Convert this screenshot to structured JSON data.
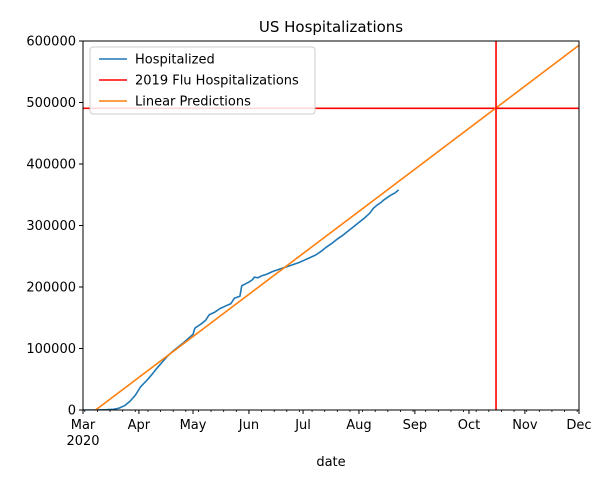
{
  "chart_data": {
    "type": "line",
    "title": "US Hospitalizations",
    "xlabel": "date",
    "ylabel": "",
    "x_axis": {
      "type": "date",
      "range": [
        "2020-03-01",
        "2020-12-01"
      ],
      "ticks": [
        {
          "date": "2020-03-01",
          "label": "Mar",
          "sublabel": "2020"
        },
        {
          "date": "2020-04-01",
          "label": "Apr"
        },
        {
          "date": "2020-05-01",
          "label": "May"
        },
        {
          "date": "2020-06-01",
          "label": "Jun"
        },
        {
          "date": "2020-07-01",
          "label": "Jul"
        },
        {
          "date": "2020-08-01",
          "label": "Aug"
        },
        {
          "date": "2020-09-01",
          "label": "Sep"
        },
        {
          "date": "2020-10-01",
          "label": "Oct"
        },
        {
          "date": "2020-11-01",
          "label": "Nov"
        },
        {
          "date": "2020-12-01",
          "label": "Dec"
        }
      ]
    },
    "y_axis": {
      "range": [
        0,
        600000
      ],
      "ticks": [
        {
          "value": 0,
          "label": "0"
        },
        {
          "value": 100000,
          "label": "100000"
        },
        {
          "value": 200000,
          "label": "200000"
        },
        {
          "value": 300000,
          "label": "300000"
        },
        {
          "value": 400000,
          "label": "400000"
        },
        {
          "value": 500000,
          "label": "500000"
        },
        {
          "value": 600000,
          "label": "600000"
        }
      ]
    },
    "grid": false,
    "legend": {
      "placement": "upper-left",
      "entries": [
        "Hospitalized",
        "2019 Flu Hospitalizations",
        "Linear Predictions"
      ]
    },
    "series": [
      {
        "name": "Hospitalized",
        "color": "#1f77b4",
        "points": [
          [
            "2020-03-01",
            0
          ],
          [
            "2020-03-06",
            0
          ],
          [
            "2020-03-10",
            150
          ],
          [
            "2020-03-14",
            500
          ],
          [
            "2020-03-18",
            1200
          ],
          [
            "2020-03-21",
            3000
          ],
          [
            "2020-03-24",
            7000
          ],
          [
            "2020-03-27",
            14000
          ],
          [
            "2020-03-30",
            24000
          ],
          [
            "2020-04-02",
            38000
          ],
          [
            "2020-04-05",
            47000
          ],
          [
            "2020-04-08",
            57000
          ],
          [
            "2020-04-11",
            68000
          ],
          [
            "2020-04-14",
            78000
          ],
          [
            "2020-04-17",
            88000
          ],
          [
            "2020-04-20",
            96000
          ],
          [
            "2020-04-23",
            103000
          ],
          [
            "2020-04-26",
            110000
          ],
          [
            "2020-04-29",
            118000
          ],
          [
            "2020-05-01",
            123000
          ],
          [
            "2020-05-02",
            133000
          ],
          [
            "2020-05-04",
            137000
          ],
          [
            "2020-05-06",
            141000
          ],
          [
            "2020-05-08",
            146000
          ],
          [
            "2020-05-10",
            155000
          ],
          [
            "2020-05-13",
            159000
          ],
          [
            "2020-05-16",
            165000
          ],
          [
            "2020-05-19",
            169000
          ],
          [
            "2020-05-22",
            173000
          ],
          [
            "2020-05-24",
            182000
          ],
          [
            "2020-05-27",
            185000
          ],
          [
            "2020-05-28",
            202000
          ],
          [
            "2020-05-30",
            205000
          ],
          [
            "2020-06-01",
            208000
          ],
          [
            "2020-06-03",
            212000
          ],
          [
            "2020-06-04",
            216000
          ],
          [
            "2020-06-06",
            215000
          ],
          [
            "2020-06-08",
            218000
          ],
          [
            "2020-06-11",
            221000
          ],
          [
            "2020-06-14",
            225000
          ],
          [
            "2020-06-17",
            228000
          ],
          [
            "2020-06-20",
            231000
          ],
          [
            "2020-06-23",
            234000
          ],
          [
            "2020-06-26",
            237000
          ],
          [
            "2020-06-29",
            240000
          ],
          [
            "2020-07-02",
            244000
          ],
          [
            "2020-07-05",
            248000
          ],
          [
            "2020-07-08",
            252000
          ],
          [
            "2020-07-11",
            258000
          ],
          [
            "2020-07-14",
            265000
          ],
          [
            "2020-07-17",
            271000
          ],
          [
            "2020-07-20",
            278000
          ],
          [
            "2020-07-23",
            284000
          ],
          [
            "2020-07-26",
            291000
          ],
          [
            "2020-07-29",
            298000
          ],
          [
            "2020-08-01",
            305000
          ],
          [
            "2020-08-04",
            312000
          ],
          [
            "2020-08-07",
            320000
          ],
          [
            "2020-08-09",
            328000
          ],
          [
            "2020-08-11",
            333000
          ],
          [
            "2020-08-13",
            337000
          ],
          [
            "2020-08-15",
            342000
          ],
          [
            "2020-08-17",
            346000
          ],
          [
            "2020-08-19",
            350000
          ],
          [
            "2020-08-21",
            353000
          ],
          [
            "2020-08-23",
            358000
          ]
        ]
      },
      {
        "name": "2019 Flu Hospitalizations",
        "color": "#ff0000",
        "y_constant": 490600
      },
      {
        "name": "Linear Predictions",
        "color": "#ff7f0e",
        "points": [
          [
            "2020-03-08",
            0
          ],
          [
            "2020-12-01",
            593000
          ]
        ]
      }
    ],
    "reference_lines": [
      {
        "type": "vertical",
        "x": "2020-10-16",
        "color": "#ff0000"
      }
    ]
  }
}
